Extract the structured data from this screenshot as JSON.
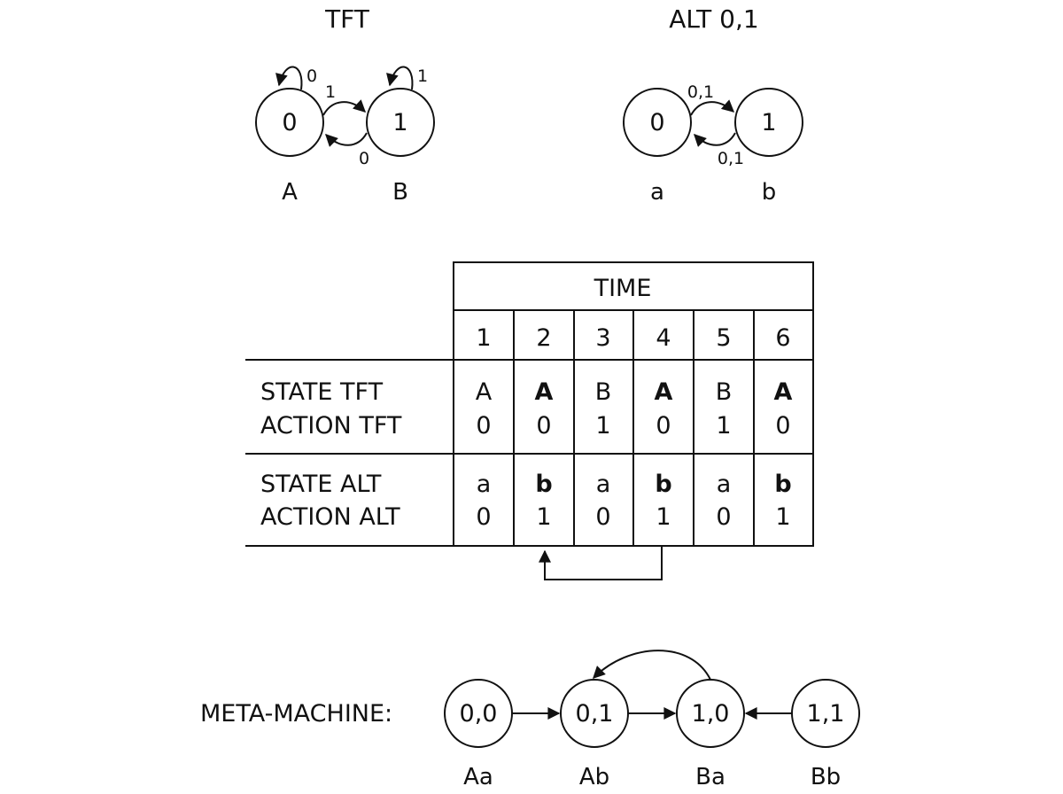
{
  "tft": {
    "title": "TFT",
    "state_values": [
      "0",
      "1"
    ],
    "state_names": [
      "A",
      "B"
    ],
    "self_loop_labels": [
      "0",
      "1"
    ],
    "forward_label": "1",
    "back_label": "0"
  },
  "alt": {
    "title": "ALT 0,1",
    "state_values": [
      "0",
      "1"
    ],
    "state_names": [
      "a",
      "b"
    ],
    "forward_label": "0,1",
    "back_label": "0,1"
  },
  "table": {
    "time_header": "TIME",
    "times": [
      "1",
      "2",
      "3",
      "4",
      "5",
      "6"
    ],
    "rows": [
      {
        "labels": [
          "STATE TFT",
          "ACTION TFT"
        ],
        "states": [
          "A",
          "A",
          "B",
          "A",
          "B",
          "A"
        ],
        "actions": [
          "0",
          "0",
          "1",
          "0",
          "1",
          "0"
        ],
        "bold": [
          false,
          true,
          false,
          true,
          false,
          true
        ]
      },
      {
        "labels": [
          "STATE ALT",
          "ACTION ALT"
        ],
        "states": [
          "a",
          "b",
          "a",
          "b",
          "a",
          "b"
        ],
        "actions": [
          "0",
          "1",
          "0",
          "1",
          "0",
          "1"
        ],
        "bold": [
          false,
          true,
          false,
          true,
          false,
          true
        ]
      }
    ],
    "cycle_arrow": {
      "from_time": "4",
      "to_time": "2"
    }
  },
  "meta": {
    "label": "META-MACHINE:",
    "nodes": [
      {
        "value": "0,0",
        "name": "Aa"
      },
      {
        "value": "0,1",
        "name": "Ab"
      },
      {
        "value": "1,0",
        "name": "Ba"
      },
      {
        "value": "1,1",
        "name": "Bb"
      }
    ]
  }
}
